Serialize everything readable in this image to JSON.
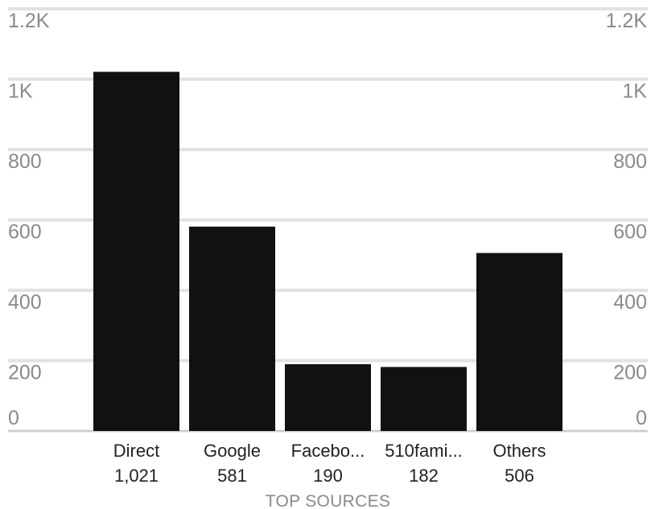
{
  "chart_data": {
    "type": "bar",
    "categories": [
      "Direct",
      "Google",
      "Facebo...",
      "510fami...",
      "Others"
    ],
    "values": [
      1021,
      581,
      190,
      182,
      506
    ],
    "value_labels": [
      "1,021",
      "581",
      "190",
      "182",
      "506"
    ],
    "xlabel": "TOP SOURCES",
    "ylabel": "",
    "ylim": [
      0,
      1200
    ],
    "y_ticks": [
      0,
      200,
      400,
      600,
      800,
      1000,
      1200
    ],
    "y_tick_labels": [
      "0",
      "200",
      "400",
      "600",
      "800",
      "1K",
      "1.2K"
    ],
    "y_axis_sides": [
      "left",
      "right"
    ],
    "grid": true,
    "legend": "none",
    "colors": {
      "bar": "#111111",
      "grid": "#e2e2e2",
      "baseline": "#cfcfcf",
      "tick_text": "#8a8a8a",
      "label_text": "#222222"
    }
  }
}
